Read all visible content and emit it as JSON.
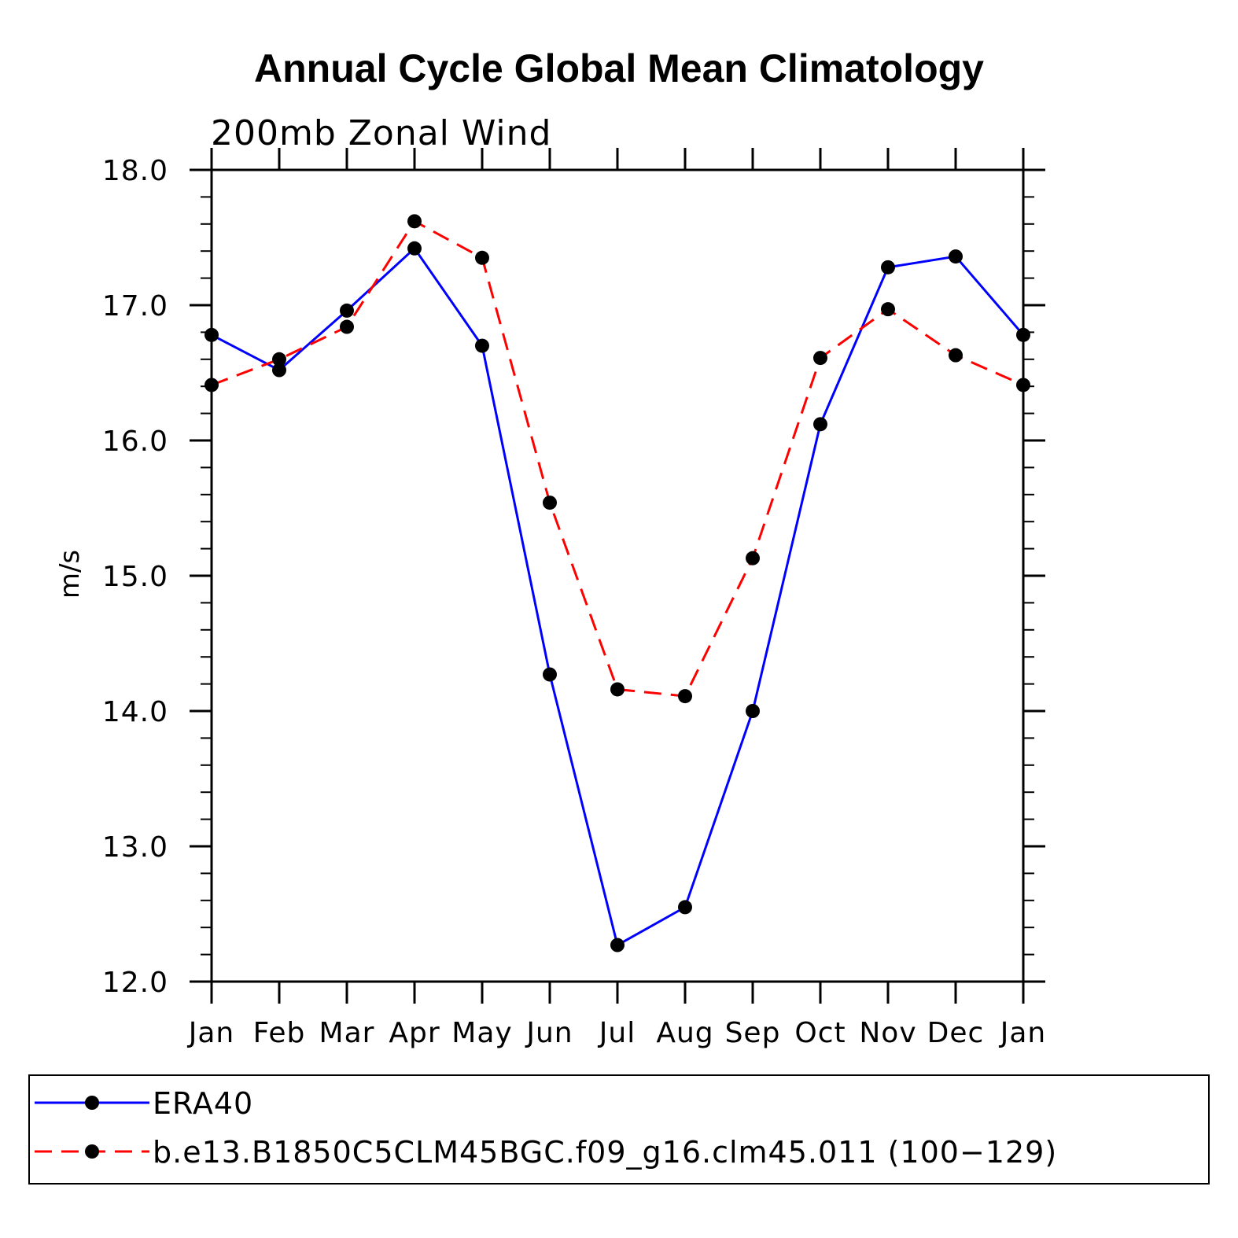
{
  "chart_data": {
    "type": "line",
    "title": "Annual Cycle Global Mean Climatology",
    "subtitle": "200mb Zonal Wind",
    "xlabel": "",
    "ylabel": "m/s",
    "categories": [
      "Jan",
      "Feb",
      "Mar",
      "Apr",
      "May",
      "Jun",
      "Jul",
      "Aug",
      "Sep",
      "Oct",
      "Nov",
      "Dec",
      "Jan"
    ],
    "ylim": [
      12.0,
      18.0
    ],
    "yticks": [
      "12.0",
      "13.0",
      "14.0",
      "15.0",
      "16.0",
      "17.0",
      "18.0"
    ],
    "grid": false,
    "legend_position": "bottom",
    "series": [
      {
        "name": "ERA40",
        "color": "#0000ff",
        "dash": "solid",
        "marker": "filled-circle",
        "values": [
          16.78,
          16.52,
          16.96,
          17.42,
          16.7,
          14.27,
          12.27,
          12.55,
          14.0,
          16.12,
          17.28,
          17.36,
          16.78
        ]
      },
      {
        "name": "b.e13.B1850C5CLM45BGC.f09_g16.clm45.011 (100−129)",
        "color": "#ff0000",
        "dash": "dashed",
        "marker": "filled-circle",
        "values": [
          16.41,
          16.6,
          16.84,
          17.62,
          17.35,
          15.54,
          14.16,
          14.11,
          15.13,
          16.61,
          16.97,
          16.63,
          16.41
        ]
      }
    ]
  }
}
